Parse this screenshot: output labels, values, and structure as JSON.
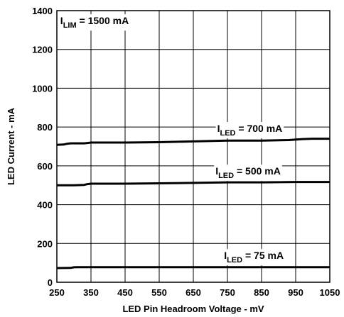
{
  "chart_data": {
    "type": "line",
    "xlabel": "LED Pin Headroom Voltage - mV",
    "ylabel": "LED Current - mA",
    "xlim": [
      250,
      1050
    ],
    "ylim": [
      0,
      1400
    ],
    "x_ticks": [
      250,
      350,
      450,
      550,
      650,
      750,
      850,
      950,
      1050
    ],
    "y_ticks": [
      0,
      200,
      400,
      600,
      800,
      1000,
      1200,
      1400
    ],
    "grid": true,
    "line_color": "#000000",
    "annotations": [
      {
        "main": "I",
        "sub": "LIM",
        "rest": " = 1500 mA",
        "at": [
          260,
          1330
        ]
      },
      {
        "main": "I",
        "sub": "LED",
        "rest": " = 700 mA",
        "at": [
          720,
          775
        ]
      },
      {
        "main": "I",
        "sub": "LED",
        "rest": " = 500 mA",
        "at": [
          715,
          555
        ]
      },
      {
        "main": "I",
        "sub": "LED",
        "rest": " = 75 mA",
        "at": [
          740,
          120
        ]
      }
    ],
    "series": [
      {
        "x": [
          250,
          270,
          280,
          290,
          300,
          330,
          340,
          350,
          450,
          550,
          650,
          750,
          850,
          930,
          970,
          1000,
          1050
        ],
        "values": [
          708,
          710,
          714,
          716,
          716,
          716,
          718,
          720,
          720,
          722,
          726,
          730,
          730,
          733,
          738,
          740,
          740
        ]
      },
      {
        "x": [
          250,
          300,
          330,
          340,
          350,
          450,
          550,
          650,
          750,
          850,
          950,
          1050
        ],
        "values": [
          500,
          500,
          502,
          506,
          508,
          508,
          510,
          512,
          515,
          515,
          517,
          517
        ]
      },
      {
        "x": [
          250,
          290,
          300,
          310,
          350,
          450,
          550,
          650,
          750,
          850,
          950,
          1050
        ],
        "values": [
          73,
          74,
          77,
          78,
          78,
          78,
          78,
          78,
          78,
          78,
          78,
          78
        ]
      }
    ]
  }
}
